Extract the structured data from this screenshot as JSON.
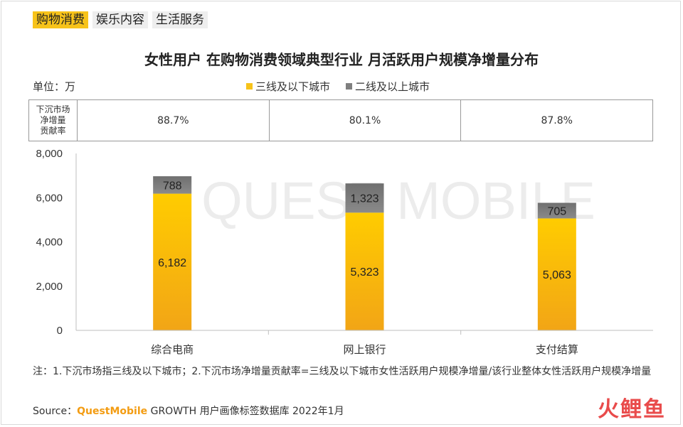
{
  "tabs": [
    {
      "label": "购物消费",
      "active": true
    },
    {
      "label": "娱乐内容",
      "active": false
    },
    {
      "label": "生活服务",
      "active": false
    }
  ],
  "unit_label": "单位：万",
  "colors": {
    "accent": "#f7c31a",
    "lower_tier": "#f7c31a",
    "upper_tier": "#7f7f7f"
  },
  "contribution_table": {
    "header": [
      "下沉市场",
      "净增量",
      "贡献率"
    ],
    "values": [
      "88.7%",
      "80.1%",
      "87.8%"
    ]
  },
  "watermark": "QUEST MOBILE",
  "note": "注：1.下沉市场指三线及以下城市；2.下沉市场净增量贡献率=三线及以下城市女性活跃用户规模净增量/该行业整体女性活跃用户规模净增量",
  "source": {
    "prefix": "Source：",
    "brand": "QuestMobile",
    "text": "GROWTH 用户画像标签数据库 2022年1月"
  },
  "corner_logo": "火鲤鱼",
  "chart_data": {
    "type": "bar",
    "stacked": true,
    "title": "女性用户 在购物消费领域典型行业 月活跃用户规模净增量分布",
    "categories": [
      "综合电商",
      "网上银行",
      "支付结算"
    ],
    "series": [
      {
        "name": "三线及以下城市",
        "values": [
          6182,
          5323,
          5063
        ],
        "labels": [
          "6,182",
          "5,323",
          "5,063"
        ]
      },
      {
        "name": "二线及以上城市",
        "values": [
          788,
          1323,
          705
        ],
        "labels": [
          "788",
          "1,323",
          "705"
        ]
      }
    ],
    "ylim": [
      0,
      8000
    ],
    "yticks": [
      0,
      2000,
      4000,
      6000,
      8000
    ],
    "ytick_labels": [
      "0",
      "2,000",
      "4,000",
      "6,000",
      "8,000"
    ],
    "xlabel": "",
    "ylabel": "",
    "grid": false,
    "legend_position": "top-center"
  }
}
